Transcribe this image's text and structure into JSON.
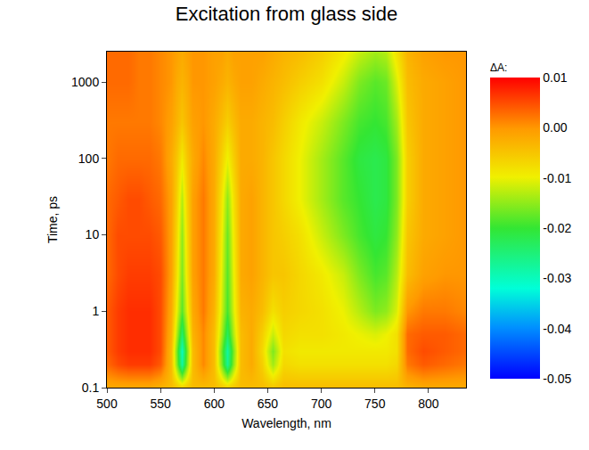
{
  "chart_data": {
    "type": "heatmap",
    "title": "Excitation from glass side",
    "x_label": "Wavelength, nm",
    "y_label": "Time, ps",
    "log": "y",
    "xlim": [
      500,
      835
    ],
    "ylim": [
      0.1,
      2500
    ],
    "xticks": [
      500,
      550,
      600,
      650,
      700,
      750,
      800
    ],
    "yticks": [
      0.1,
      1,
      10,
      100,
      1000
    ],
    "x": [
      500,
      510,
      520,
      530,
      540,
      550,
      560,
      565,
      570,
      575,
      580,
      590,
      600,
      606,
      612,
      618,
      625,
      635,
      645,
      655,
      665,
      680,
      700,
      720,
      735,
      750,
      760,
      770,
      780,
      795,
      815,
      835
    ],
    "y": [
      0.1,
      0.2,
      0.3,
      0.5,
      1,
      3,
      10,
      30,
      100,
      300,
      1000,
      2500
    ],
    "z": [
      [
        -0.002,
        -0.002,
        -0.002,
        -0.002,
        -0.002,
        -0.003,
        -0.004,
        -0.005,
        -0.006,
        -0.005,
        -0.004,
        -0.004,
        -0.004,
        -0.005,
        -0.006,
        -0.005,
        -0.004,
        -0.004,
        -0.004,
        -0.005,
        -0.004,
        -0.004,
        -0.004,
        -0.004,
        -0.004,
        -0.004,
        -0.004,
        -0.004,
        -0.003,
        -0.002,
        -0.002,
        -0.002
      ],
      [
        0.003,
        0.005,
        0.006,
        0.006,
        0.006,
        0.004,
        -0.004,
        -0.015,
        -0.028,
        -0.015,
        -0.004,
        0.001,
        -0.004,
        -0.015,
        -0.027,
        -0.015,
        -0.004,
        -0.002,
        -0.006,
        -0.014,
        -0.007,
        -0.008,
        -0.008,
        -0.008,
        -0.008,
        -0.008,
        -0.008,
        -0.007,
        0.002,
        0.004,
        0.003,
        0.002
      ],
      [
        0.004,
        0.006,
        0.007,
        0.007,
        0.007,
        0.005,
        -0.004,
        -0.016,
        -0.03,
        -0.016,
        -0.004,
        0.001,
        -0.004,
        -0.016,
        -0.028,
        -0.016,
        -0.004,
        -0.002,
        -0.007,
        -0.016,
        -0.008,
        -0.009,
        -0.009,
        -0.009,
        -0.009,
        -0.009,
        -0.009,
        -0.008,
        0.003,
        0.005,
        0.004,
        0.003
      ],
      [
        0.004,
        0.006,
        0.007,
        0.007,
        0.007,
        0.005,
        -0.003,
        -0.013,
        -0.024,
        -0.013,
        -0.003,
        0.001,
        -0.004,
        -0.013,
        -0.023,
        -0.013,
        -0.004,
        -0.002,
        -0.006,
        -0.012,
        -0.007,
        -0.008,
        -0.008,
        -0.009,
        -0.01,
        -0.011,
        -0.01,
        -0.008,
        0.003,
        0.004,
        0.004,
        0.003
      ],
      [
        0.004,
        0.006,
        0.007,
        0.007,
        0.007,
        0.005,
        -0.002,
        -0.01,
        -0.018,
        -0.01,
        -0.002,
        0.002,
        -0.003,
        -0.011,
        -0.019,
        -0.011,
        -0.003,
        -0.002,
        -0.004,
        -0.008,
        -0.006,
        -0.007,
        -0.008,
        -0.01,
        -0.013,
        -0.016,
        -0.015,
        -0.011,
        0.0,
        0.002,
        0.002,
        0.001
      ],
      [
        0.003,
        0.005,
        0.006,
        0.006,
        0.006,
        0.005,
        -0.001,
        -0.008,
        -0.016,
        -0.008,
        -0.001,
        0.002,
        -0.002,
        -0.01,
        -0.018,
        -0.01,
        -0.002,
        -0.001,
        -0.003,
        -0.005,
        -0.005,
        -0.007,
        -0.009,
        -0.012,
        -0.016,
        -0.019,
        -0.018,
        -0.013,
        -0.004,
        -0.001,
        0.0,
        0.0
      ],
      [
        0.003,
        0.005,
        0.005,
        0.005,
        0.005,
        0.004,
        -0.001,
        -0.007,
        -0.015,
        -0.007,
        -0.001,
        0.002,
        -0.002,
        -0.009,
        -0.017,
        -0.009,
        -0.002,
        -0.001,
        -0.003,
        -0.005,
        -0.006,
        -0.008,
        -0.012,
        -0.016,
        -0.019,
        -0.021,
        -0.02,
        -0.015,
        -0.005,
        -0.002,
        -0.001,
        0.0
      ],
      [
        0.003,
        0.004,
        0.005,
        0.005,
        0.004,
        0.003,
        -0.001,
        -0.006,
        -0.013,
        -0.006,
        -0.001,
        0.002,
        -0.002,
        -0.008,
        -0.015,
        -0.008,
        -0.002,
        -0.001,
        -0.003,
        -0.005,
        -0.007,
        -0.01,
        -0.014,
        -0.018,
        -0.02,
        -0.022,
        -0.021,
        -0.016,
        -0.006,
        -0.002,
        -0.001,
        0.0
      ],
      [
        0.002,
        0.003,
        0.003,
        0.003,
        0.003,
        0.002,
        -0.002,
        -0.005,
        -0.009,
        -0.005,
        -0.002,
        0.001,
        -0.002,
        -0.006,
        -0.01,
        -0.006,
        -0.002,
        -0.002,
        -0.003,
        -0.005,
        -0.007,
        -0.01,
        -0.014,
        -0.018,
        -0.021,
        -0.022,
        -0.021,
        -0.016,
        -0.006,
        -0.002,
        -0.001,
        0.0
      ],
      [
        0.002,
        0.002,
        0.002,
        0.002,
        0.002,
        0.001,
        -0.001,
        -0.003,
        -0.005,
        -0.003,
        -0.001,
        0.0,
        -0.002,
        -0.004,
        -0.006,
        -0.004,
        -0.002,
        -0.002,
        -0.003,
        -0.004,
        -0.006,
        -0.009,
        -0.012,
        -0.016,
        -0.019,
        -0.02,
        -0.019,
        -0.014,
        -0.005,
        -0.002,
        -0.001,
        0.0
      ],
      [
        0.003,
        0.003,
        0.003,
        0.002,
        0.002,
        0.001,
        0.0,
        -0.002,
        -0.003,
        -0.002,
        0.0,
        0.0,
        -0.001,
        -0.002,
        -0.003,
        -0.002,
        -0.001,
        -0.001,
        -0.002,
        -0.003,
        -0.004,
        -0.006,
        -0.008,
        -0.012,
        -0.016,
        -0.018,
        -0.017,
        -0.011,
        -0.004,
        -0.002,
        -0.001,
        0.0
      ],
      [
        0.003,
        0.003,
        0.003,
        0.002,
        0.002,
        0.001,
        0.0,
        -0.001,
        -0.002,
        -0.001,
        0.0,
        0.0,
        -0.001,
        -0.001,
        -0.002,
        -0.001,
        -0.001,
        -0.001,
        -0.001,
        -0.002,
        -0.003,
        -0.004,
        -0.006,
        -0.009,
        -0.012,
        -0.014,
        -0.013,
        -0.008,
        -0.003,
        -0.001,
        0.0,
        0.0
      ]
    ],
    "colorbar": {
      "title": "ΔA:",
      "lim": [
        -0.05,
        0.01
      ],
      "ticks": [
        -0.05,
        -0.04,
        -0.03,
        -0.02,
        -0.01,
        {
          "value": 0,
          "label": "0.00"
        },
        0.01
      ]
    }
  }
}
